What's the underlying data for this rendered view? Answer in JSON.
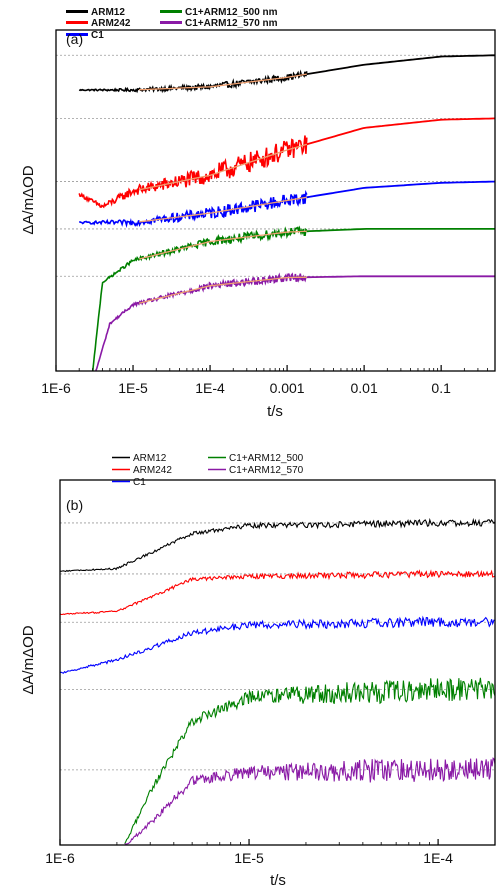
{
  "chart_data": [
    {
      "panel_label": "(a)",
      "type": "line",
      "xlabel": "t/s",
      "ylabel": "ΔA/mΔOD",
      "xscale": "log",
      "xlim": [
        1e-06,
        0.5
      ],
      "xticks": [
        {
          "value": 1e-06,
          "label": "1E-6"
        },
        {
          "value": 1e-05,
          "label": "1E-5"
        },
        {
          "value": 0.0001,
          "label": "1E-4"
        },
        {
          "value": 0.001,
          "label": "0.001"
        },
        {
          "value": 0.01,
          "label": "0.01"
        },
        {
          "value": 0.1,
          "label": "0.1"
        }
      ],
      "y_tick_labels": "none",
      "grid": "dashed horizontal reference lines at each trace plateau",
      "legend_position": "top-left",
      "legend": [
        "ARM12",
        "ARM242",
        "C1",
        "C1+ARM12_500 nm",
        "C1+ARM12_570 nm"
      ],
      "fit_color": "#f0a070",
      "series": [
        {
          "name": "ARM12",
          "color": "#000000",
          "plateau": 4.8,
          "early": 4.25,
          "mid_t": 0.003,
          "noise": 0.05,
          "rise_start": 2e-06,
          "x": [
            2e-06,
            1e-05,
            0.0001,
            0.001,
            0.01,
            0.1,
            0.5
          ],
          "y": [
            4.25,
            4.25,
            4.3,
            4.45,
            4.65,
            4.78,
            4.8
          ]
        },
        {
          "name": "ARM242",
          "color": "#ff0000",
          "plateau": 3.8,
          "early": 2.6,
          "mid_t": 0.002,
          "noise": 0.16,
          "rise_start": 2e-06,
          "x": [
            2e-06,
            4e-06,
            1e-05,
            0.0001,
            0.001,
            0.01,
            0.1,
            0.5
          ],
          "y": [
            2.6,
            2.4,
            2.65,
            2.9,
            3.3,
            3.65,
            3.78,
            3.8
          ]
        },
        {
          "name": "C1",
          "color": "#0000ff",
          "plateau": 2.8,
          "early": 2.15,
          "mid_t": 0.003,
          "noise": 0.1,
          "rise_start": 2e-06,
          "x": [
            2e-06,
            1e-05,
            0.0001,
            0.001,
            0.01,
            0.1,
            0.5
          ],
          "y": [
            2.15,
            2.15,
            2.3,
            2.5,
            2.7,
            2.78,
            2.8
          ]
        },
        {
          "name": "C1+ARM12_500 nm",
          "color": "#008000",
          "plateau": 2.05,
          "early": 1.5,
          "mid_t": 0.00025,
          "noise": 0.07,
          "rise_start": 3e-06,
          "x": [
            3e-06,
            4e-06,
            1e-05,
            0.0001,
            0.001,
            0.01,
            0.1,
            0.5
          ],
          "y": [
            -0.2,
            1.2,
            1.55,
            1.85,
            2.0,
            2.05,
            2.05,
            2.05
          ]
        },
        {
          "name": "C1+ARM12_570 nm",
          "color": "#8a1aa6",
          "plateau": 1.3,
          "early": 0.8,
          "mid_t": 0.0002,
          "noise": 0.06,
          "rise_start": 3.3e-06,
          "x": [
            3.3e-06,
            5e-06,
            1e-05,
            0.0001,
            0.001,
            0.01,
            0.1,
            0.5
          ],
          "y": [
            -0.2,
            0.55,
            0.85,
            1.15,
            1.28,
            1.3,
            1.3,
            1.3
          ]
        }
      ]
    },
    {
      "panel_label": "(b)",
      "type": "line",
      "xlabel": "t/s",
      "ylabel": "ΔA/mΔOD",
      "xscale": "log",
      "xlim": [
        1e-06,
        0.0002
      ],
      "xticks": [
        {
          "value": 1e-06,
          "label": "1E-6"
        },
        {
          "value": 1e-05,
          "label": "1E-5"
        },
        {
          "value": 0.0001,
          "label": "1E-4"
        }
      ],
      "y_tick_labels": "none",
      "grid": "dashed horizontal reference lines at each trace plateau",
      "legend_position": "top-left",
      "legend": [
        "ARM12",
        "ARM242",
        "C1",
        "C1+ARM12_500",
        "C1+ARM12_570"
      ],
      "series": [
        {
          "name": "ARM12",
          "color": "#000000",
          "plateau": 4.0,
          "early": 3.1,
          "mid_t": 4e-06,
          "noise": 0.06,
          "rise_start": 1e-06,
          "x": [
            1e-06,
            2e-06,
            5e-06,
            1e-05,
            0.0001,
            0.0002
          ],
          "y": [
            3.1,
            3.15,
            3.8,
            3.95,
            4.0,
            4.0
          ]
        },
        {
          "name": "ARM242",
          "color": "#ff0000",
          "plateau": 3.05,
          "early": 2.3,
          "mid_t": 3e-06,
          "noise": 0.06,
          "rise_start": 1e-06,
          "x": [
            1e-06,
            2e-06,
            5e-06,
            1e-05,
            0.0001,
            0.0002
          ],
          "y": [
            2.3,
            2.35,
            2.95,
            3.0,
            3.05,
            3.05
          ]
        },
        {
          "name": "C1",
          "color": "#0000ff",
          "plateau": 2.15,
          "early": 1.2,
          "mid_t": 4e-06,
          "noise": 0.09,
          "rise_start": 1e-06,
          "x": [
            1e-06,
            2e-06,
            5e-06,
            1e-05,
            0.0001,
            0.0002
          ],
          "y": [
            1.2,
            1.45,
            1.95,
            2.1,
            2.15,
            2.15
          ]
        },
        {
          "name": "C1+ARM12_500",
          "color": "#008000",
          "plateau": 0.9,
          "early": 0.9,
          "mid_t": 5e-06,
          "noise": 0.22,
          "rise_start": 2.2e-06,
          "x": [
            2.2e-06,
            3e-06,
            5e-06,
            1e-05,
            0.0001,
            0.0002
          ],
          "y": [
            -2.0,
            -1.0,
            0.3,
            0.75,
            0.9,
            0.9
          ]
        },
        {
          "name": "C1+ARM12_570",
          "color": "#8a1aa6",
          "plateau": -0.6,
          "early": -0.6,
          "mid_t": 5e-06,
          "noise": 0.22,
          "rise_start": 2.2e-06,
          "x": [
            2.2e-06,
            3e-06,
            5e-06,
            1e-05,
            0.0001,
            0.0002
          ],
          "y": [
            -2.0,
            -1.6,
            -0.8,
            -0.65,
            -0.6,
            -0.6
          ]
        }
      ]
    }
  ]
}
